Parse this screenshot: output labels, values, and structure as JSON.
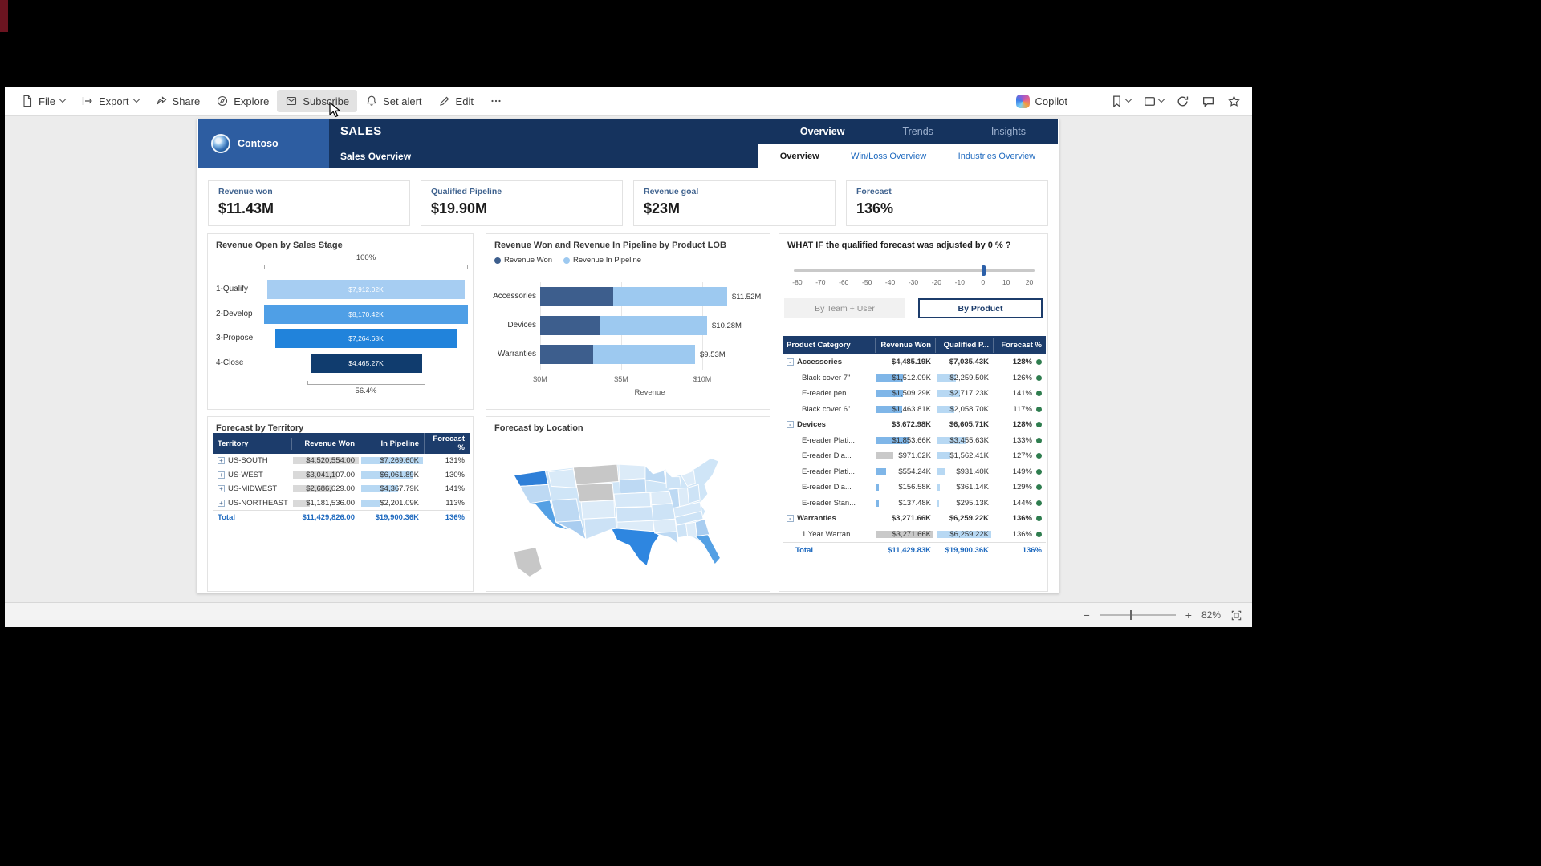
{
  "colors": {
    "header_navy": "#15335e",
    "logo_blue": "#2d5da1",
    "table_header_navy": "#1c3c6b",
    "link_blue": "#1f6abf",
    "won_bar_dark": "#3d5e8d",
    "pipeline_bar_light": "#9dc9f0",
    "status_green": "#2f7d4f"
  },
  "browser": {
    "toolbar": [
      {
        "label": "File",
        "icon": "file-icon",
        "chevron": true
      },
      {
        "label": "Export",
        "icon": "export-icon",
        "chevron": true
      },
      {
        "label": "Share",
        "icon": "share-icon",
        "chevron": false
      },
      {
        "label": "Explore",
        "icon": "explore-icon",
        "chevron": false
      },
      {
        "label": "Subscribe",
        "icon": "subscribe-icon",
        "chevron": false,
        "hovered": true
      },
      {
        "label": "Set alert",
        "icon": "set-alert-icon",
        "chevron": false
      },
      {
        "label": "Edit",
        "icon": "edit-icon",
        "chevron": false
      },
      {
        "label": "",
        "icon": "more-icon",
        "chevron": false
      }
    ],
    "copilot": "Copilot",
    "zoom": "82%"
  },
  "header": {
    "brand": "Contoso",
    "title": "SALES",
    "subtitle": "Sales Overview",
    "tabs": [
      {
        "label": "Overview",
        "active": true
      },
      {
        "label": "Trends",
        "active": false
      },
      {
        "label": "Insights",
        "active": false
      }
    ],
    "subtabs": [
      {
        "label": "Overview",
        "active": true
      },
      {
        "label": "Win/Loss Overview",
        "active": false
      },
      {
        "label": "Industries Overview",
        "active": false
      }
    ]
  },
  "kpis": [
    {
      "label": "Revenue won",
      "value": "$11.43M"
    },
    {
      "label": "Qualified Pipeline",
      "value": "$19.90M"
    },
    {
      "label": "Revenue goal",
      "value": "$23M"
    },
    {
      "label": "Forecast",
      "value": "136%"
    }
  ],
  "funnel": {
    "title": "Revenue Open by Sales Stage",
    "top_percent": "100%",
    "bottom_percent": "56.4%",
    "stages": [
      {
        "label": "1-Qualify",
        "value_text": "$7,912.02K",
        "value": 7912.02,
        "color": "#a6cdf2"
      },
      {
        "label": "2-Develop",
        "value_text": "$8,170.42K",
        "value": 8170.42,
        "color": "#4f9fe6"
      },
      {
        "label": "3-Propose",
        "value_text": "$7,264.68K",
        "value": 7264.68,
        "color": "#2183db"
      },
      {
        "label": "4-Close",
        "value_text": "$4,465.27K",
        "value": 4465.27,
        "color": "#103c6e"
      }
    ]
  },
  "lob": {
    "title": "Revenue Won and Revenue In Pipeline by Product LOB",
    "legend": [
      {
        "label": "Revenue Won",
        "color": "#3d5e8d"
      },
      {
        "label": "Revenue In Pipeline",
        "color": "#9dc9f0"
      }
    ],
    "rows": [
      {
        "label": "Accessories",
        "won": 4.49,
        "pipeline": 7.03,
        "total_text": "$11.52M"
      },
      {
        "label": "Devices",
        "won": 3.67,
        "pipeline": 6.61,
        "total_text": "$10.28M"
      },
      {
        "label": "Warranties",
        "won": 3.27,
        "pipeline": 6.26,
        "total_text": "$9.53M"
      }
    ],
    "x_ticks": [
      {
        "label": "$0M",
        "value": 0
      },
      {
        "label": "$5M",
        "value": 5
      },
      {
        "label": "$10M",
        "value": 10
      }
    ],
    "x_label": "Revenue",
    "x_max": 13.5
  },
  "territory": {
    "title": "Forecast by Territory",
    "columns": [
      "Territory",
      "Revenue Won",
      "In Pipeline",
      "Forecast %"
    ],
    "rows": [
      {
        "name": "US-SOUTH",
        "won_text": "$4,520,554.00",
        "won": 4520554,
        "pipeline_text": "$7,269.60K",
        "pipeline": 7269.6,
        "forecast": "131%"
      },
      {
        "name": "US-WEST",
        "won_text": "$3,041,107.00",
        "won": 3041107,
        "pipeline_text": "$6,061.89K",
        "pipeline": 6061.89,
        "forecast": "130%"
      },
      {
        "name": "US-MIDWEST",
        "won_text": "$2,686,629.00",
        "won": 2686629,
        "pipeline_text": "$4,367.79K",
        "pipeline": 4367.79,
        "forecast": "141%"
      },
      {
        "name": "US-NORTHEAST",
        "won_text": "$1,181,536.00",
        "won": 1181536,
        "pipeline_text": "$2,201.09K",
        "pipeline": 2201.09,
        "forecast": "113%"
      }
    ],
    "total": {
      "name": "Total",
      "won_text": "$11,429,826.00",
      "pipeline_text": "$19,900.36K",
      "forecast": "136%"
    }
  },
  "map": {
    "title": "Forecast by Location"
  },
  "whatif": {
    "title": "WHAT IF the qualified forecast was adjusted by",
    "value": "0 % ?",
    "ticks": [
      "-80",
      "-70",
      "-60",
      "-50",
      "-40",
      "-30",
      "-20",
      "-10",
      "0",
      "10",
      "20"
    ],
    "buttons": [
      {
        "label": "By Team + User",
        "active": false
      },
      {
        "label": "By Product",
        "active": true
      }
    ]
  },
  "product_table": {
    "columns": [
      "Product Category",
      "Revenue Won",
      "Qualified P...",
      "Forecast %"
    ],
    "won_max": 3271.66,
    "qualified_max": 6259.22,
    "rows": [
      {
        "type": "category",
        "name": "Accessories",
        "won_text": "$4,485.19K",
        "qualified_text": "$7,035.43K",
        "forecast": "128%"
      },
      {
        "type": "item",
        "name": "Black cover 7\"",
        "won": 1512.09,
        "won_text": "$1,512.09K",
        "qualified": 2259.5,
        "qualified_text": "$2,259.50K",
        "forecast": "126%"
      },
      {
        "type": "item",
        "name": "E-reader pen",
        "won": 1509.29,
        "won_text": "$1,509.29K",
        "qualified": 2717.23,
        "qualified_text": "$2,717.23K",
        "forecast": "141%"
      },
      {
        "type": "item",
        "name": "Black cover 6\"",
        "won": 1463.81,
        "won_text": "$1,463.81K",
        "qualified": 2058.7,
        "qualified_text": "$2,058.70K",
        "forecast": "117%"
      },
      {
        "type": "category",
        "name": "Devices",
        "won_text": "$3,672.98K",
        "qualified_text": "$6,605.71K",
        "forecast": "128%"
      },
      {
        "type": "item",
        "name": "E-reader Plati...",
        "won": 1853.66,
        "won_text": "$1,853.66K",
        "qualified": 3455.63,
        "qualified_text": "$3,455.63K",
        "forecast": "133%"
      },
      {
        "type": "item",
        "name": "E-reader Dia...",
        "won": 971.02,
        "won_text": "$971.02K",
        "qualified": 1562.41,
        "qualified_text": "$1,562.41K",
        "forecast": "127%",
        "won_gray": true
      },
      {
        "type": "item",
        "name": "E-reader Plati...",
        "won": 554.24,
        "won_text": "$554.24K",
        "qualified": 931.4,
        "qualified_text": "$931.40K",
        "forecast": "149%"
      },
      {
        "type": "item",
        "name": "E-reader Dia...",
        "won": 156.58,
        "won_text": "$156.58K",
        "qualified": 361.14,
        "qualified_text": "$361.14K",
        "forecast": "129%"
      },
      {
        "type": "item",
        "name": "E-reader Stan...",
        "won": 137.48,
        "won_text": "$137.48K",
        "qualified": 295.13,
        "qualified_text": "$295.13K",
        "forecast": "144%"
      },
      {
        "type": "category",
        "name": "Warranties",
        "won_text": "$3,271.66K",
        "qualified_text": "$6,259.22K",
        "forecast": "136%"
      },
      {
        "type": "item",
        "name": "1 Year Warran...",
        "won": 3271.66,
        "won_text": "$3,271.66K",
        "qualified": 6259.22,
        "qualified_text": "$6,259.22K",
        "forecast": "136%",
        "won_gray": true
      }
    ],
    "total": {
      "name": "Total",
      "won_text": "$11,429.83K",
      "qualified_text": "$19,900.36K",
      "forecast": "136%"
    }
  }
}
